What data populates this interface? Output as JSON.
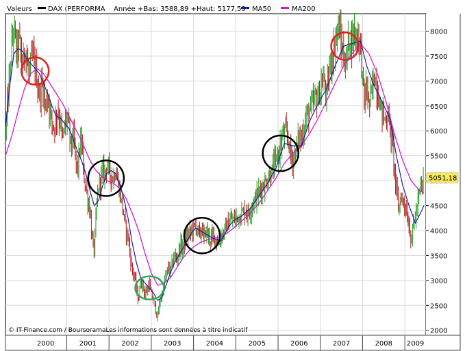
{
  "chart_data": {
    "type": "candlestick",
    "title": "DAX (PERFORMA",
    "legend": {
      "label": "Valeurs",
      "series_name": "DAX (PERFORMA",
      "stats": "Année +Bas: 3588,89 +Haut: 5177,59",
      "ma50_label": "MA50",
      "ma200_label": "MA200"
    },
    "last_value": "5051,18",
    "footer": "© IT-Finance.com / BoursoramaLes informations sont données à titre indicatif",
    "x_ticks": [
      "2000",
      "2001",
      "2002",
      "2003",
      "2004",
      "2005",
      "2006",
      "2007",
      "2008",
      "2009"
    ],
    "y_ticks": [
      2000,
      2500,
      3000,
      3500,
      4000,
      4500,
      5000,
      5500,
      6000,
      6500,
      7000,
      7500,
      8000
    ],
    "ylim": [
      1900,
      8350
    ],
    "xlim": [
      1999.55,
      2009.5
    ],
    "grid": true,
    "legend_position": "top",
    "colors": {
      "up": "#1f9e1f",
      "down": "#b01c1c",
      "ma50": "#1a1aa8",
      "ma200": "#d01ad0",
      "last_value_box": "#f6ea5c",
      "circle_red": "#e02020",
      "circle_black": "#000000",
      "circle_green": "#2aaa55"
    },
    "price_path": [
      [
        1999.55,
        6000
      ],
      [
        1999.62,
        6800
      ],
      [
        1999.7,
        7700
      ],
      [
        1999.75,
        8100
      ],
      [
        1999.8,
        7600
      ],
      [
        1999.88,
        7800
      ],
      [
        1999.95,
        7300
      ],
      [
        2000.02,
        7700
      ],
      [
        2000.1,
        7100
      ],
      [
        2000.18,
        7500
      ],
      [
        2000.25,
        7300
      ],
      [
        2000.3,
        7000
      ],
      [
        2000.35,
        6700
      ],
      [
        2000.42,
        6950
      ],
      [
        2000.5,
        6500
      ],
      [
        2000.55,
        6700
      ],
      [
        2000.62,
        6300
      ],
      [
        2000.7,
        6050
      ],
      [
        2000.78,
        6400
      ],
      [
        2000.85,
        6200
      ],
      [
        2000.9,
        5800
      ],
      [
        2000.95,
        6100
      ],
      [
        2001.0,
        6300
      ],
      [
        2001.05,
        6050
      ],
      [
        2001.1,
        5700
      ],
      [
        2001.15,
        5900
      ],
      [
        2001.2,
        5500
      ],
      [
        2001.25,
        5200
      ],
      [
        2001.3,
        5600
      ],
      [
        2001.35,
        5800
      ],
      [
        2001.4,
        5100
      ],
      [
        2001.45,
        4900
      ],
      [
        2001.5,
        4600
      ],
      [
        2001.55,
        4400
      ],
      [
        2001.6,
        3800
      ],
      [
        2001.65,
        3600
      ],
      [
        2001.7,
        4400
      ],
      [
        2001.75,
        4900
      ],
      [
        2001.8,
        5000
      ],
      [
        2001.85,
        5200
      ],
      [
        2001.9,
        5150
      ],
      [
        2001.95,
        5350
      ],
      [
        2002.0,
        5200
      ],
      [
        2002.05,
        5100
      ],
      [
        2002.1,
        5050
      ],
      [
        2002.15,
        5200
      ],
      [
        2002.2,
        5000
      ],
      [
        2002.25,
        4800
      ],
      [
        2002.3,
        4600
      ],
      [
        2002.35,
        4300
      ],
      [
        2002.4,
        4000
      ],
      [
        2002.45,
        3900
      ],
      [
        2002.5,
        3500
      ],
      [
        2002.55,
        3200
      ],
      [
        2002.6,
        3100
      ],
      [
        2002.65,
        2800
      ],
      [
        2002.7,
        2600
      ],
      [
        2002.75,
        3000
      ],
      [
        2002.8,
        2900
      ],
      [
        2002.85,
        2700
      ],
      [
        2002.9,
        2800
      ],
      [
        2002.95,
        2950
      ],
      [
        2003.0,
        2700
      ],
      [
        2003.05,
        2600
      ],
      [
        2003.1,
        2450
      ],
      [
        2003.15,
        2250
      ],
      [
        2003.2,
        2600
      ],
      [
        2003.25,
        2700
      ],
      [
        2003.3,
        2900
      ],
      [
        2003.35,
        3100
      ],
      [
        2003.4,
        3250
      ],
      [
        2003.45,
        3200
      ],
      [
        2003.5,
        3350
      ],
      [
        2003.55,
        3500
      ],
      [
        2003.6,
        3400
      ],
      [
        2003.65,
        3600
      ],
      [
        2003.7,
        3700
      ],
      [
        2003.75,
        3650
      ],
      [
        2003.8,
        3800
      ],
      [
        2003.85,
        3900
      ],
      [
        2003.9,
        3950
      ],
      [
        2003.95,
        4000
      ],
      [
        2004.0,
        4050
      ],
      [
        2004.05,
        4100
      ],
      [
        2004.1,
        4000
      ],
      [
        2004.15,
        3900
      ],
      [
        2004.2,
        4050
      ],
      [
        2004.25,
        3850
      ],
      [
        2004.3,
        4000
      ],
      [
        2004.35,
        3900
      ],
      [
        2004.4,
        3800
      ],
      [
        2004.45,
        3900
      ],
      [
        2004.5,
        3850
      ],
      [
        2004.55,
        3800
      ],
      [
        2004.6,
        3700
      ],
      [
        2004.65,
        3900
      ],
      [
        2004.7,
        3950
      ],
      [
        2004.75,
        4050
      ],
      [
        2004.8,
        4100
      ],
      [
        2004.85,
        4150
      ],
      [
        2004.9,
        4250
      ],
      [
        2004.95,
        4200
      ],
      [
        2005.0,
        4250
      ],
      [
        2005.1,
        4300
      ],
      [
        2005.2,
        4400
      ],
      [
        2005.3,
        4350
      ],
      [
        2005.4,
        4550
      ],
      [
        2005.5,
        4700
      ],
      [
        2005.6,
        4850
      ],
      [
        2005.7,
        4950
      ],
      [
        2005.8,
        5100
      ],
      [
        2005.9,
        5300
      ],
      [
        2006.0,
        5500
      ],
      [
        2006.05,
        5700
      ],
      [
        2006.1,
        5850
      ],
      [
        2006.15,
        6000
      ],
      [
        2006.2,
        5900
      ],
      [
        2006.25,
        5800
      ],
      [
        2006.3,
        5500
      ],
      [
        2006.35,
        5400
      ],
      [
        2006.4,
        5600
      ],
      [
        2006.45,
        5700
      ],
      [
        2006.5,
        5900
      ],
      [
        2006.55,
        5800
      ],
      [
        2006.6,
        6050
      ],
      [
        2006.65,
        6200
      ],
      [
        2006.7,
        6350
      ],
      [
        2006.75,
        6400
      ],
      [
        2006.8,
        6500
      ],
      [
        2006.85,
        6600
      ],
      [
        2006.9,
        6700
      ],
      [
        2006.95,
        6650
      ],
      [
        2007.0,
        6800
      ],
      [
        2007.05,
        7000
      ],
      [
        2007.1,
        6950
      ],
      [
        2007.15,
        6700
      ],
      [
        2007.2,
        7100
      ],
      [
        2007.25,
        7400
      ],
      [
        2007.3,
        7500
      ],
      [
        2007.35,
        7800
      ],
      [
        2007.4,
        8000
      ],
      [
        2007.45,
        8050
      ],
      [
        2007.5,
        7700
      ],
      [
        2007.55,
        7500
      ],
      [
        2007.6,
        7300
      ],
      [
        2007.65,
        7700
      ],
      [
        2007.7,
        7900
      ],
      [
        2007.75,
        7800
      ],
      [
        2007.8,
        8000
      ],
      [
        2007.85,
        7900
      ],
      [
        2007.9,
        7950
      ],
      [
        2007.95,
        7700
      ],
      [
        2008.0,
        7000
      ],
      [
        2008.05,
        6600
      ],
      [
        2008.1,
        6900
      ],
      [
        2008.15,
        6500
      ],
      [
        2008.2,
        6700
      ],
      [
        2008.25,
        7000
      ],
      [
        2008.3,
        7100
      ],
      [
        2008.35,
        6800
      ],
      [
        2008.4,
        6600
      ],
      [
        2008.45,
        6400
      ],
      [
        2008.5,
        6300
      ],
      [
        2008.55,
        6200
      ],
      [
        2008.6,
        6400
      ],
      [
        2008.65,
        6000
      ],
      [
        2008.7,
        5800
      ],
      [
        2008.75,
        5300
      ],
      [
        2008.8,
        4800
      ],
      [
        2008.85,
        4400
      ],
      [
        2008.9,
        4700
      ],
      [
        2008.95,
        4600
      ],
      [
        2009.0,
        4550
      ],
      [
        2009.05,
        4300
      ],
      [
        2009.1,
        4100
      ],
      [
        2009.15,
        3800
      ],
      [
        2009.2,
        4100
      ],
      [
        2009.25,
        4300
      ],
      [
        2009.3,
        4500
      ],
      [
        2009.35,
        4800
      ],
      [
        2009.4,
        4900
      ],
      [
        2009.45,
        5050
      ]
    ],
    "ma50_path": [
      [
        1999.55,
        6050
      ],
      [
        1999.65,
        6900
      ],
      [
        1999.75,
        7550
      ],
      [
        1999.85,
        7650
      ],
      [
        1999.95,
        7600
      ],
      [
        2000.05,
        7450
      ],
      [
        2000.15,
        7350
      ],
      [
        2000.25,
        7250
      ],
      [
        2000.35,
        7150
      ],
      [
        2000.45,
        6950
      ],
      [
        2000.55,
        6750
      ],
      [
        2000.65,
        6500
      ],
      [
        2000.75,
        6300
      ],
      [
        2000.85,
        6250
      ],
      [
        2000.95,
        6150
      ],
      [
        2001.05,
        6050
      ],
      [
        2001.15,
        5850
      ],
      [
        2001.25,
        5600
      ],
      [
        2001.35,
        5400
      ],
      [
        2001.45,
        5150
      ],
      [
        2001.55,
        4800
      ],
      [
        2001.65,
        4500
      ],
      [
        2001.75,
        4600
      ],
      [
        2001.85,
        4900
      ],
      [
        2001.95,
        5150
      ],
      [
        2002.05,
        5200
      ],
      [
        2002.15,
        5150
      ],
      [
        2002.25,
        4950
      ],
      [
        2002.35,
        4650
      ],
      [
        2002.45,
        4250
      ],
      [
        2002.55,
        3750
      ],
      [
        2002.65,
        3350
      ],
      [
        2002.75,
        3050
      ],
      [
        2002.85,
        2950
      ],
      [
        2002.95,
        2850
      ],
      [
        2003.05,
        2750
      ],
      [
        2003.15,
        2600
      ],
      [
        2003.25,
        2650
      ],
      [
        2003.35,
        2900
      ],
      [
        2003.45,
        3150
      ],
      [
        2003.55,
        3350
      ],
      [
        2003.65,
        3500
      ],
      [
        2003.75,
        3650
      ],
      [
        2003.85,
        3800
      ],
      [
        2003.95,
        3950
      ],
      [
        2004.05,
        4050
      ],
      [
        2004.15,
        4000
      ],
      [
        2004.25,
        3950
      ],
      [
        2004.35,
        3900
      ],
      [
        2004.45,
        3850
      ],
      [
        2004.55,
        3820
      ],
      [
        2004.65,
        3800
      ],
      [
        2004.75,
        3950
      ],
      [
        2004.85,
        4100
      ],
      [
        2004.95,
        4200
      ],
      [
        2005.15,
        4300
      ],
      [
        2005.35,
        4450
      ],
      [
        2005.55,
        4700
      ],
      [
        2005.75,
        4950
      ],
      [
        2005.95,
        5250
      ],
      [
        2006.15,
        5750
      ],
      [
        2006.35,
        5700
      ],
      [
        2006.55,
        5700
      ],
      [
        2006.75,
        6200
      ],
      [
        2006.95,
        6550
      ],
      [
        2007.15,
        6850
      ],
      [
        2007.35,
        7300
      ],
      [
        2007.55,
        7700
      ],
      [
        2007.75,
        7750
      ],
      [
        2007.95,
        7800
      ],
      [
        2008.1,
        7300
      ],
      [
        2008.25,
        6950
      ],
      [
        2008.45,
        6600
      ],
      [
        2008.65,
        6250
      ],
      [
        2008.8,
        5500
      ],
      [
        2008.95,
        4900
      ],
      [
        2009.1,
        4500
      ],
      [
        2009.25,
        4150
      ],
      [
        2009.4,
        4400
      ],
      [
        2009.45,
        4500
      ]
    ],
    "ma200_path": [
      [
        1999.55,
        5500
      ],
      [
        1999.7,
        5900
      ],
      [
        1999.85,
        6400
      ],
      [
        2000.0,
        6850
      ],
      [
        2000.15,
        7150
      ],
      [
        2000.3,
        7250
      ],
      [
        2000.45,
        7150
      ],
      [
        2000.6,
        6950
      ],
      [
        2000.75,
        6750
      ],
      [
        2000.9,
        6550
      ],
      [
        2001.05,
        6300
      ],
      [
        2001.2,
        6050
      ],
      [
        2001.35,
        5800
      ],
      [
        2001.5,
        5500
      ],
      [
        2001.65,
        5250
      ],
      [
        2001.8,
        5100
      ],
      [
        2001.95,
        5000
      ],
      [
        2002.1,
        4950
      ],
      [
        2002.25,
        4850
      ],
      [
        2002.4,
        4650
      ],
      [
        2002.55,
        4350
      ],
      [
        2002.7,
        4000
      ],
      [
        2002.85,
        3550
      ],
      [
        2003.0,
        3150
      ],
      [
        2003.15,
        2900
      ],
      [
        2003.3,
        2950
      ],
      [
        2003.45,
        3050
      ],
      [
        2003.6,
        3250
      ],
      [
        2003.75,
        3450
      ],
      [
        2003.9,
        3600
      ],
      [
        2004.05,
        3700
      ],
      [
        2004.2,
        3780
      ],
      [
        2004.35,
        3820
      ],
      [
        2004.5,
        3850
      ],
      [
        2004.65,
        3880
      ],
      [
        2004.8,
        3950
      ],
      [
        2004.95,
        4050
      ],
      [
        2005.15,
        4200
      ],
      [
        2005.35,
        4350
      ],
      [
        2005.55,
        4550
      ],
      [
        2005.75,
        4800
      ],
      [
        2005.95,
        5050
      ],
      [
        2006.15,
        5350
      ],
      [
        2006.35,
        5550
      ],
      [
        2006.55,
        5700
      ],
      [
        2006.75,
        5950
      ],
      [
        2006.95,
        6250
      ],
      [
        2007.15,
        6600
      ],
      [
        2007.35,
        6950
      ],
      [
        2007.55,
        7300
      ],
      [
        2007.75,
        7550
      ],
      [
        2007.95,
        7750
      ],
      [
        2008.15,
        7550
      ],
      [
        2008.35,
        7150
      ],
      [
        2008.55,
        6600
      ],
      [
        2008.75,
        5950
      ],
      [
        2008.95,
        5400
      ],
      [
        2009.15,
        5000
      ],
      [
        2009.35,
        4800
      ],
      [
        2009.45,
        4750
      ]
    ],
    "annotations": [
      {
        "shape": "circle",
        "color": "red",
        "x": 2000.25,
        "y": 7200
      },
      {
        "shape": "circle",
        "color": "black",
        "x": 2001.93,
        "y": 5050
      },
      {
        "shape": "circle",
        "color": "green",
        "x": 2002.96,
        "y": 2850
      },
      {
        "shape": "circle",
        "color": "black",
        "x": 2004.2,
        "y": 3900
      },
      {
        "shape": "circle",
        "color": "black",
        "x": 2006.06,
        "y": 5550
      },
      {
        "shape": "circle",
        "color": "red",
        "x": 2007.58,
        "y": 7700
      }
    ]
  }
}
